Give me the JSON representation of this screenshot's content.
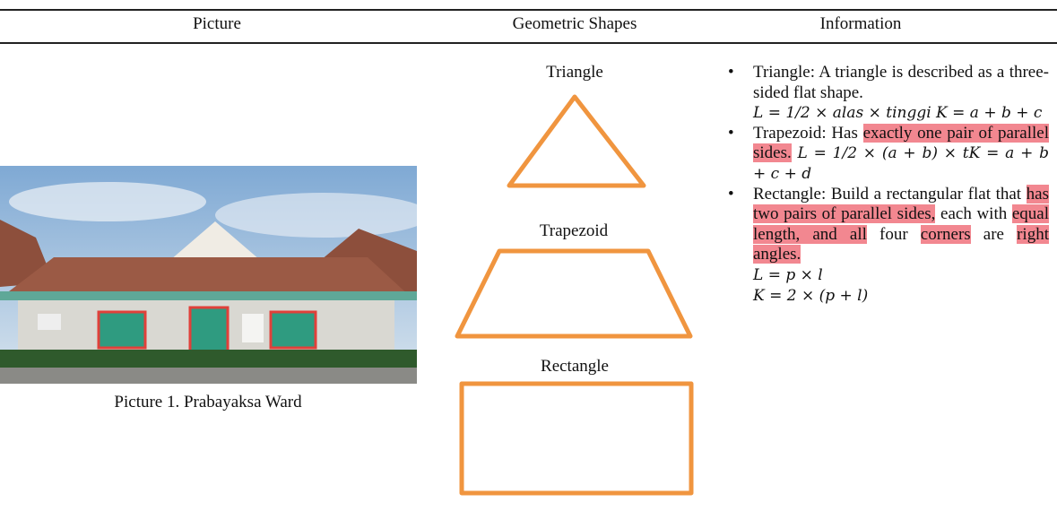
{
  "header": {
    "columns": [
      "Picture",
      "Geometric Shapes",
      "Information"
    ]
  },
  "picture": {
    "caption": "Picture 1. Prabayaksa Ward"
  },
  "shapes": [
    {
      "label": "Triangle"
    },
    {
      "label": "Trapezoid"
    },
    {
      "label": "Rectangle"
    }
  ],
  "information": [
    {
      "segments": [
        {
          "text": "Triangle: A triangle is described as a three-sided flat shape.",
          "style": "plain"
        },
        {
          "text": "L = 1/2 × alas × tinggi    K = a + b + c",
          "style": "math-line"
        }
      ]
    },
    {
      "segments": [
        {
          "text": "Trapezoid: Has ",
          "style": "plain"
        },
        {
          "text": "exactly one pair of parallel sides.",
          "style": "highlight"
        },
        {
          "text": " L = 1/2 × (a + b) × tK = a + b + c + d",
          "style": "math"
        }
      ]
    },
    {
      "segments": [
        {
          "text": "Rectangle: Build a rectangular flat that ",
          "style": "plain"
        },
        {
          "text": "has two pairs of parallel sides,",
          "style": "highlight"
        },
        {
          "text": " each with ",
          "style": "plain"
        },
        {
          "text": "equal length, and all",
          "style": "highlight"
        },
        {
          "text": " four ",
          "style": "plain"
        },
        {
          "text": "corners",
          "style": "highlight"
        },
        {
          "text": " are ",
          "style": "plain"
        },
        {
          "text": "right angles.",
          "style": "highlight"
        },
        {
          "text": "L = p × l",
          "style": "math-line"
        },
        {
          "text": "K = 2 × (p + l)",
          "style": "math-line"
        }
      ]
    }
  ]
}
